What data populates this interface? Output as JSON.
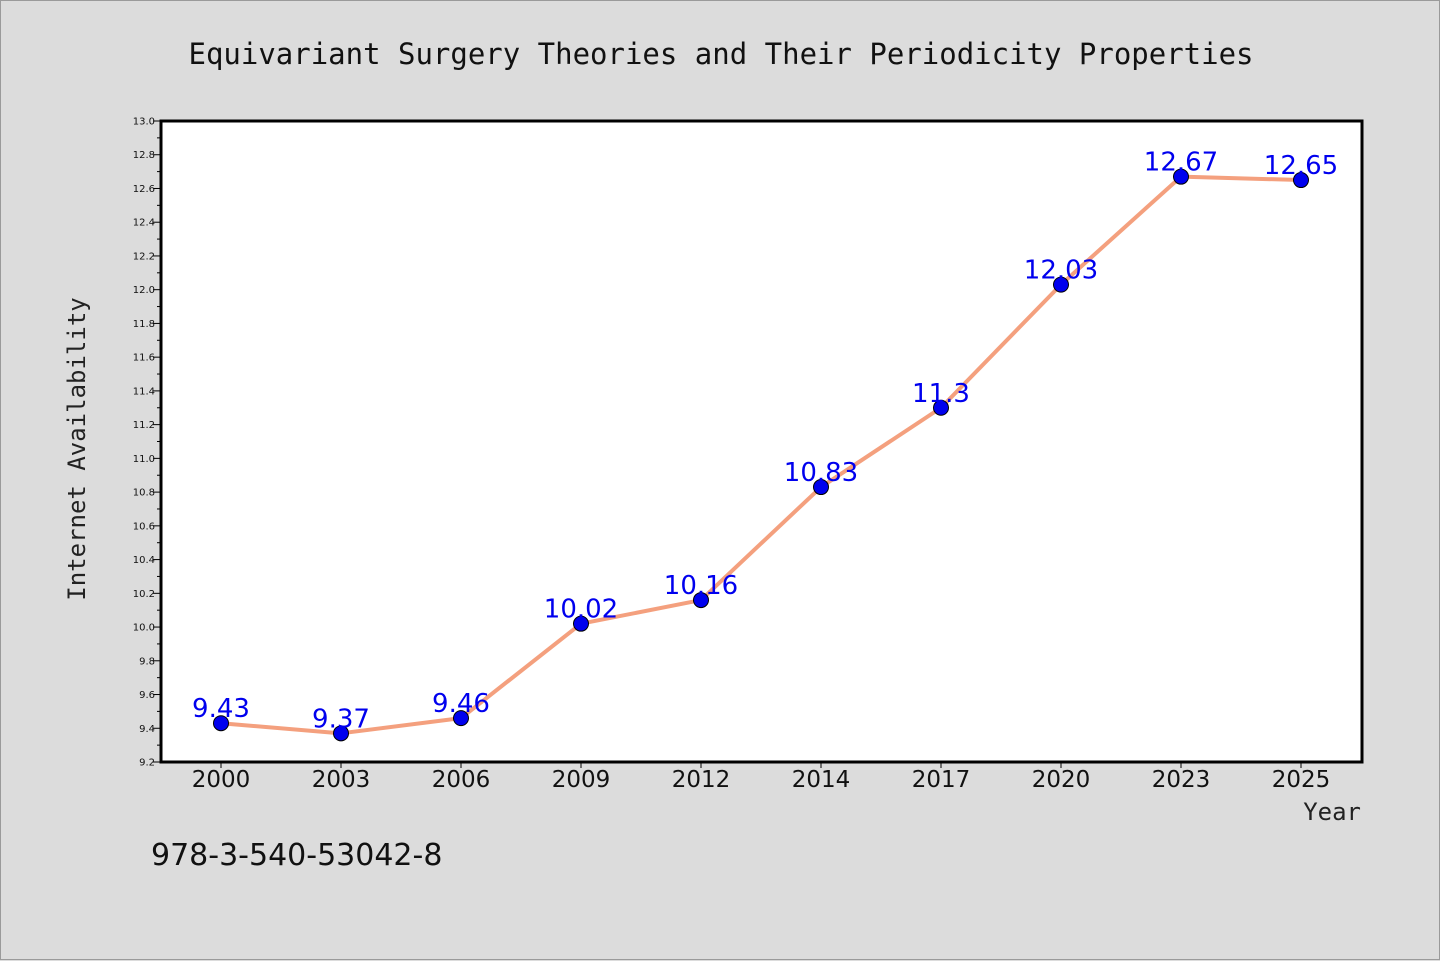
{
  "chart_data": {
    "type": "line",
    "title": "Equivariant Surgery Theories and Their Periodicity Properties",
    "xlabel": "Year",
    "ylabel": "Internet Availability",
    "categories": [
      "2000",
      "2003",
      "2006",
      "2009",
      "2012",
      "2014",
      "2017",
      "2020",
      "2023",
      "2025"
    ],
    "series": [
      {
        "values": [
          9.43,
          9.37,
          9.46,
          10.02,
          10.16,
          10.83,
          11.3,
          12.03,
          12.67,
          12.65
        ],
        "labels": [
          "9.43",
          "9.37",
          "9.46",
          "10.02",
          "10.16",
          "10.83",
          "11.3",
          "12.03",
          "12.67",
          "12.65"
        ]
      }
    ],
    "ylim": [
      9.2,
      13.0
    ],
    "yticks": [
      "9.2",
      "9.4",
      "9.6",
      "9.8",
      "10.0",
      "10.2",
      "10.4",
      "10.6",
      "10.8",
      "11.0",
      "11.2",
      "11.4",
      "11.6",
      "11.8",
      "12.0",
      "12.2",
      "12.4",
      "12.6",
      "12.8",
      "13.0"
    ],
    "grid": false,
    "colors": {
      "line": "#f4a07e",
      "marker": "#0000ee",
      "label": "#0000ee",
      "plot_bg": "#ffffff",
      "page_bg": "#dcdcdc"
    }
  },
  "footer": {
    "isbn": "978-3-540-53042-8"
  }
}
